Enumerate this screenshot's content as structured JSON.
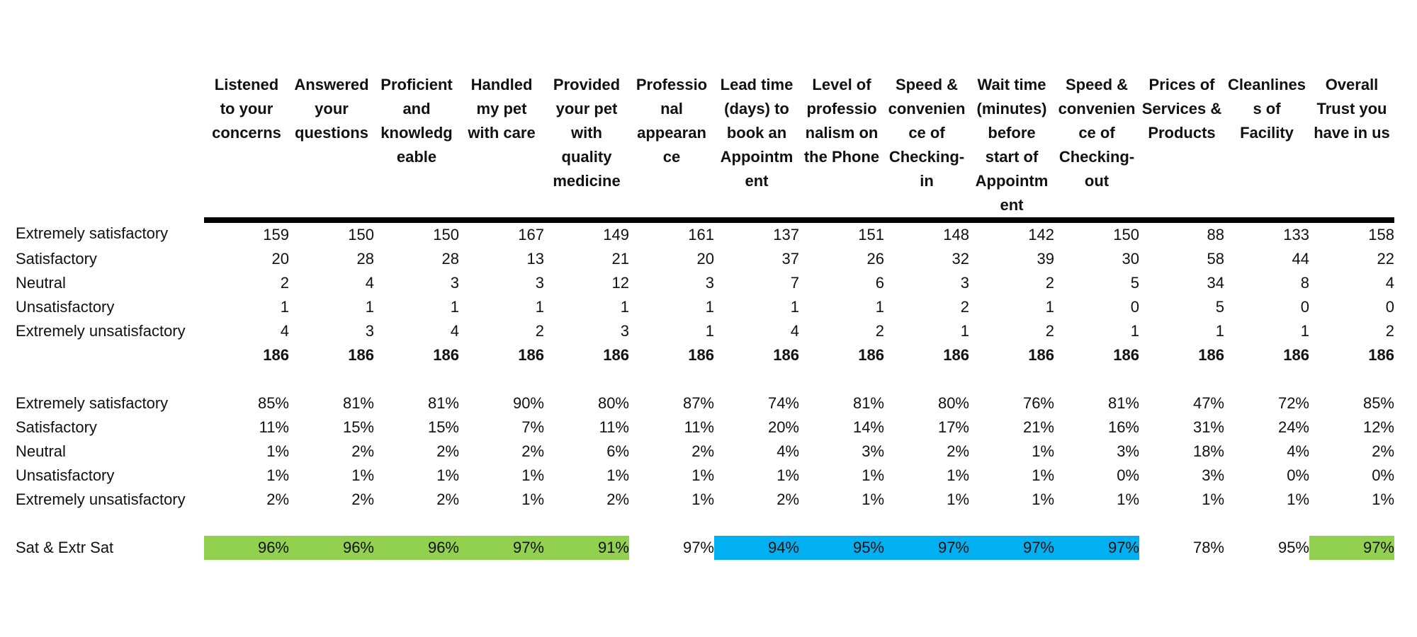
{
  "columns": [
    "Listened\nto your\nconcerns",
    "Answered\nyour\nquestions",
    "Proficient\nand\nknowledg\neable",
    "Handled\nmy pet\nwith care",
    "Provided\nyour pet\nwith\nquality\nmedicine",
    "Professio\nnal\nappearan\nce",
    "Lead time\n(days) to\nbook an\nAppointm\nent",
    "Level of\nprofessio\nnalism on\nthe Phone",
    "Speed &\nconvenien\nce of\nChecking-\nin",
    "Wait time\n(minutes)\nbefore\nstart of\nAppointm\nent",
    "Speed &\nconvenien\nce of\nChecking-\nout",
    "Prices of\nServices &\nProducts",
    "Cleanlines\ns of\nFacility",
    "Overall\nTrust you\nhave in us"
  ],
  "counts": [
    {
      "label": "Extremely satisfactory",
      "values": [
        "159",
        "150",
        "150",
        "167",
        "149",
        "161",
        "137",
        "151",
        "148",
        "142",
        "150",
        "88",
        "133",
        "158"
      ]
    },
    {
      "label": "Satisfactory",
      "values": [
        "20",
        "28",
        "28",
        "13",
        "21",
        "20",
        "37",
        "26",
        "32",
        "39",
        "30",
        "58",
        "44",
        "22"
      ]
    },
    {
      "label": "Neutral",
      "values": [
        "2",
        "4",
        "3",
        "3",
        "12",
        "3",
        "7",
        "6",
        "3",
        "2",
        "5",
        "34",
        "8",
        "4"
      ]
    },
    {
      "label": "Unsatisfactory",
      "values": [
        "1",
        "1",
        "1",
        "1",
        "1",
        "1",
        "1",
        "1",
        "2",
        "1",
        "0",
        "5",
        "0",
        "0"
      ]
    },
    {
      "label": "Extremely unsatisfactory",
      "values": [
        "4",
        "3",
        "4",
        "2",
        "3",
        "1",
        "4",
        "2",
        "1",
        "2",
        "1",
        "1",
        "1",
        "2"
      ]
    }
  ],
  "totals": [
    "186",
    "186",
    "186",
    "186",
    "186",
    "186",
    "186",
    "186",
    "186",
    "186",
    "186",
    "186",
    "186",
    "186"
  ],
  "percentages": [
    {
      "label": "Extremely satisfactory",
      "values": [
        "85%",
        "81%",
        "81%",
        "90%",
        "80%",
        "87%",
        "74%",
        "81%",
        "80%",
        "76%",
        "81%",
        "47%",
        "72%",
        "85%"
      ]
    },
    {
      "label": "Satisfactory",
      "values": [
        "11%",
        "15%",
        "15%",
        "7%",
        "11%",
        "11%",
        "20%",
        "14%",
        "17%",
        "21%",
        "16%",
        "31%",
        "24%",
        "12%"
      ]
    },
    {
      "label": "Neutral",
      "values": [
        "1%",
        "2%",
        "2%",
        "2%",
        "6%",
        "2%",
        "4%",
        "3%",
        "2%",
        "1%",
        "3%",
        "18%",
        "4%",
        "2%"
      ]
    },
    {
      "label": "Unsatisfactory",
      "values": [
        "1%",
        "1%",
        "1%",
        "1%",
        "1%",
        "1%",
        "1%",
        "1%",
        "1%",
        "1%",
        "0%",
        "3%",
        "0%",
        "0%"
      ]
    },
    {
      "label": "Extremely unsatisfactory",
      "values": [
        "2%",
        "2%",
        "2%",
        "1%",
        "2%",
        "1%",
        "2%",
        "1%",
        "1%",
        "1%",
        "1%",
        "1%",
        "1%",
        "1%"
      ]
    }
  ],
  "sat_row": {
    "label": "Sat & Extr Sat",
    "values": [
      "96%",
      "96%",
      "96%",
      "97%",
      "91%",
      "97%",
      "94%",
      "95%",
      "97%",
      "97%",
      "97%",
      "78%",
      "95%",
      "97%"
    ],
    "highlights": [
      "green",
      "green",
      "green",
      "green",
      "green",
      "none",
      "blue",
      "blue",
      "blue",
      "blue",
      "blue",
      "none",
      "none",
      "green"
    ]
  },
  "colors": {
    "green": "#92d050",
    "blue": "#00b0f0",
    "header_rule": "#000000"
  }
}
